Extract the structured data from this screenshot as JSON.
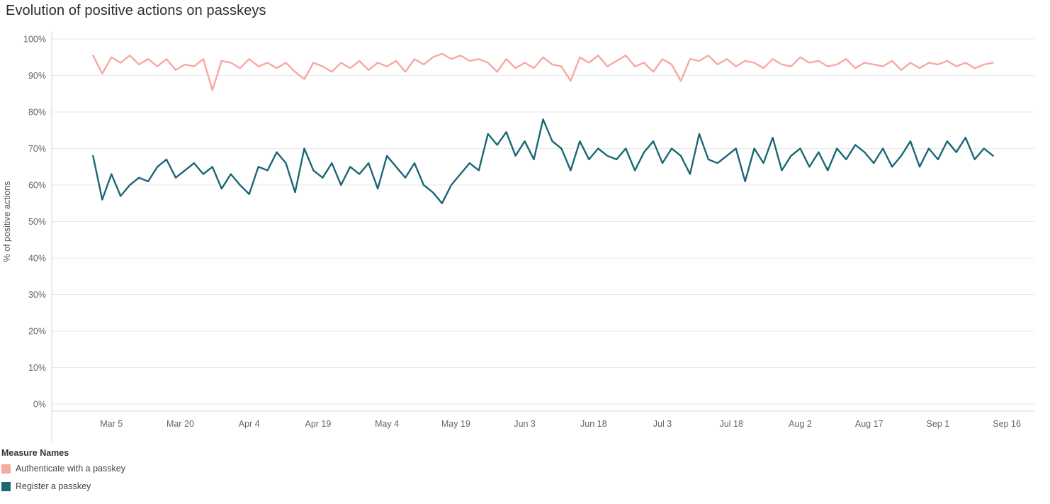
{
  "page": {
    "title": "Evolution of positive actions on passkeys"
  },
  "chart_data": {
    "type": "line",
    "title": "Evolution of positive actions on passkeys",
    "xlabel": "",
    "ylabel": "% of positive actions",
    "ylim": [
      0,
      100
    ],
    "grid": true,
    "legend_position": "bottom-left",
    "y_ticks": [
      0,
      10,
      20,
      30,
      40,
      50,
      60,
      70,
      80,
      90,
      100
    ],
    "y_tick_labels": [
      "0%",
      "10%",
      "20%",
      "30%",
      "40%",
      "50%",
      "60%",
      "70%",
      "80%",
      "90%",
      "100%"
    ],
    "x_domain_days": [
      -9,
      205
    ],
    "x_ticks": [
      {
        "day": 4,
        "label": "Mar 5"
      },
      {
        "day": 19,
        "label": "Mar 20"
      },
      {
        "day": 34,
        "label": "Apr 4"
      },
      {
        "day": 49,
        "label": "Apr 19"
      },
      {
        "day": 64,
        "label": "May 4"
      },
      {
        "day": 79,
        "label": "May 19"
      },
      {
        "day": 94,
        "label": "Jun 3"
      },
      {
        "day": 109,
        "label": "Jun 18"
      },
      {
        "day": 124,
        "label": "Jul 3"
      },
      {
        "day": 139,
        "label": "Jul 18"
      },
      {
        "day": 154,
        "label": "Aug 2"
      },
      {
        "day": 169,
        "label": "Aug 17"
      },
      {
        "day": 184,
        "label": "Sep 1"
      },
      {
        "day": 199,
        "label": "Sep 16"
      }
    ],
    "series_start_day": 0,
    "series_day_step": 2,
    "series": [
      {
        "name": "Authenticate with a passkey",
        "color": "#f7a8a2",
        "values": [
          95.5,
          90.5,
          95,
          93.5,
          95.5,
          93,
          94.5,
          92.5,
          94.5,
          91.5,
          93,
          92.5,
          94.5,
          86,
          94,
          93.5,
          92,
          94.5,
          92.5,
          93.5,
          92,
          93.5,
          91,
          89,
          93.5,
          92.5,
          91,
          93.5,
          92,
          94,
          91.5,
          93.5,
          92.5,
          94,
          91,
          94.5,
          93,
          95,
          96,
          94.5,
          95.5,
          94,
          94.5,
          93.5,
          91,
          94.5,
          92,
          93.5,
          92,
          95,
          93,
          92.5,
          88.5,
          95,
          93.5,
          95.5,
          92.5,
          94,
          95.5,
          92.5,
          93.5,
          91,
          94.5,
          93,
          88.5,
          94.5,
          94,
          95.5,
          93,
          94.5,
          92.5,
          94,
          93.5,
          92,
          94.5,
          93,
          92.5,
          95,
          93.5,
          94,
          92.5,
          93,
          94.5,
          92,
          93.5,
          93,
          92.5,
          94,
          91.5,
          93.5,
          92,
          93.5,
          93,
          94,
          92.5,
          93.5,
          92,
          93,
          93.5
        ]
      },
      {
        "name": "Register a passkey",
        "color": "#1b6775",
        "values": [
          68,
          56,
          63,
          57,
          60,
          62,
          61,
          65,
          67,
          62,
          64,
          66,
          63,
          65,
          59,
          63,
          60,
          57.5,
          65,
          64,
          69,
          66,
          58,
          70,
          64,
          62,
          66,
          60,
          65,
          63,
          66,
          59,
          68,
          65,
          62,
          66,
          60,
          58,
          55,
          60,
          63,
          66,
          64,
          74,
          71,
          74.5,
          68,
          72,
          67,
          78,
          72,
          70,
          64,
          72,
          67,
          70,
          68,
          67,
          70,
          64,
          69,
          72,
          66,
          70,
          68,
          63,
          74,
          67,
          66,
          68,
          70,
          61,
          70,
          66,
          73,
          64,
          68,
          70,
          65,
          69,
          64,
          70,
          67,
          71,
          69,
          66,
          70,
          65,
          68,
          72,
          65,
          70,
          67,
          72,
          69,
          73,
          67,
          70,
          68
        ]
      }
    ],
    "colors": {
      "grid": "#e9e9e9",
      "axis": "#d4d4d4",
      "tick_text": "#666666",
      "title_text": "#2e2e2e"
    }
  },
  "legend": {
    "title": "Measure Names",
    "items": [
      {
        "label": "Authenticate with a passkey"
      },
      {
        "label": "Register a passkey"
      }
    ]
  }
}
